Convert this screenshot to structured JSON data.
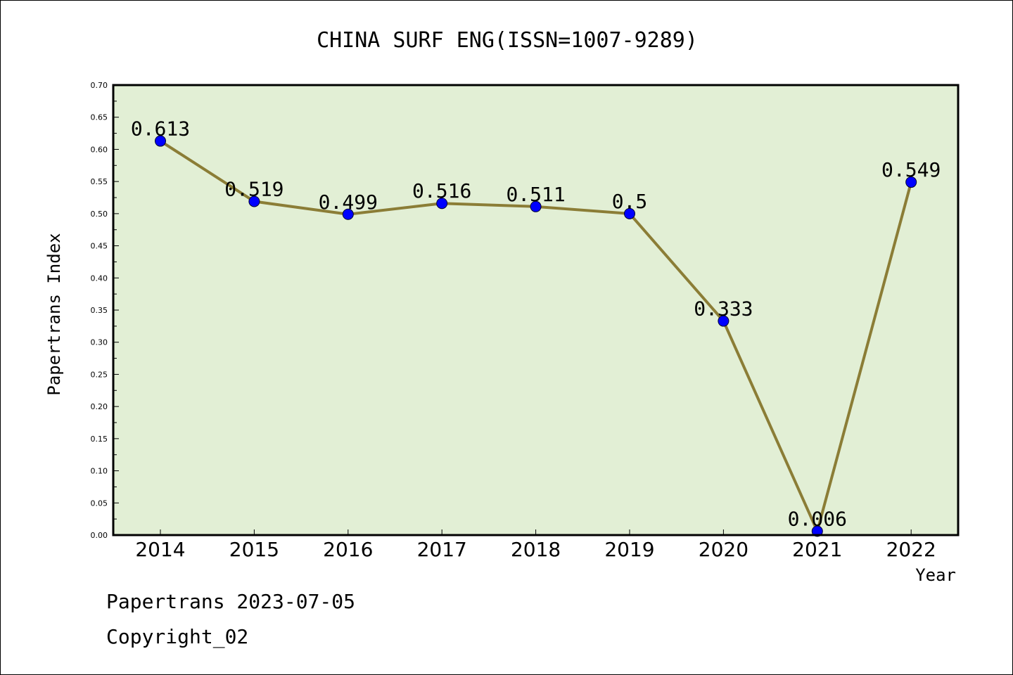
{
  "footer": {
    "line1": "Papertrans 2023-07-05",
    "line2": "Copyright_02"
  },
  "chart_data": {
    "type": "line",
    "title": "CHINA SURF ENG(ISSN=1007-9289)",
    "xlabel": "Year",
    "ylabel": "Papertrans Index",
    "categories": [
      "2014",
      "2015",
      "2016",
      "2017",
      "2018",
      "2019",
      "2020",
      "2021",
      "2022"
    ],
    "series": [
      {
        "values": [
          0.613,
          0.519,
          0.499,
          0.516,
          0.511,
          0.5,
          0.333,
          0.006,
          0.549
        ],
        "data_labels": [
          "0.613",
          "0.519",
          "0.499",
          "0.516",
          "0.511",
          "0.5",
          "0.333",
          "0.006",
          "0.549"
        ]
      }
    ],
    "ylim": [
      0,
      0.7
    ],
    "yticks": [
      "0.00",
      "0.05",
      "0.10",
      "0.15",
      "0.20",
      "0.25",
      "0.30",
      "0.35",
      "0.40",
      "0.45",
      "0.50",
      "0.55",
      "0.60",
      "0.65",
      "0.70"
    ],
    "grid": false,
    "colors": {
      "plot_background": "#e2efd5",
      "line": "#8b7d36",
      "marker": "#0000ff"
    }
  }
}
